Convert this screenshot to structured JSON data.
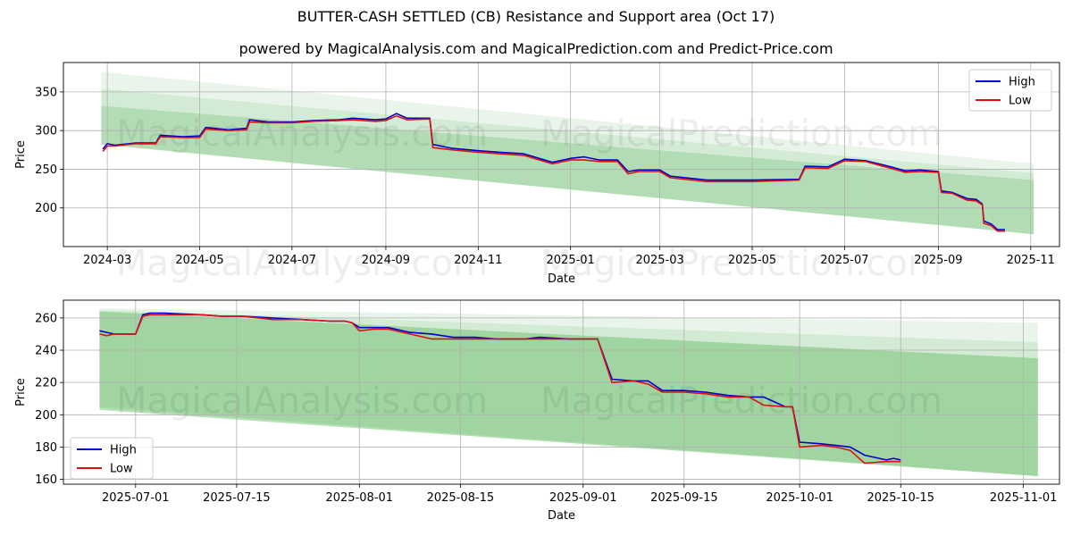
{
  "title": "BUTTER-CASH SETTLED (CB) Resistance and Support area (Oct 17)",
  "subtitle": "powered by MagicalAnalysis.com and MagicalPrediction.com and Predict-Price.com",
  "watermarks": [
    "MagicalAnalysis.com",
    "MagicalPrediction.com"
  ],
  "colors": {
    "high": "#0000cc",
    "low": "#dd1111",
    "band": "#4caf50",
    "grid": "#b0b0b0"
  },
  "chart_data": [
    {
      "type": "line",
      "xlabel": "Date",
      "ylabel": "Price",
      "xlim": [
        "2024-02-01",
        "2025-11-20"
      ],
      "ylim": [
        150,
        388
      ],
      "xticks": [
        "2024-03",
        "2024-05",
        "2024-07",
        "2024-09",
        "2024-11",
        "2025-01",
        "2025-03",
        "2025-05",
        "2025-07",
        "2025-09",
        "2025-11"
      ],
      "xtick_dates": [
        "2024-03-01",
        "2024-05-01",
        "2024-07-01",
        "2024-09-01",
        "2024-11-01",
        "2025-01-01",
        "2025-03-01",
        "2025-05-01",
        "2025-07-01",
        "2025-09-01",
        "2025-11-01"
      ],
      "yticks": [
        200,
        250,
        300,
        350
      ],
      "legend": {
        "position": "top-right",
        "entries": [
          "High",
          "Low"
        ]
      },
      "bands": [
        {
          "x": [
            "2024-02-26",
            "2025-11-03"
          ],
          "upper": [
            376,
            257
          ],
          "lower": [
            282,
            166
          ],
          "opacity": 0.12
        },
        {
          "x": [
            "2024-02-26",
            "2025-11-03"
          ],
          "upper": [
            354,
            245
          ],
          "lower": [
            282,
            166
          ],
          "opacity": 0.14
        },
        {
          "x": [
            "2024-02-26",
            "2025-11-03"
          ],
          "upper": [
            332,
            236
          ],
          "lower": [
            282,
            166
          ],
          "opacity": 0.24
        }
      ],
      "series": [
        {
          "name": "High",
          "x": [
            "2024-02-27",
            "2024-03-01",
            "2024-03-06",
            "2024-03-15",
            "2024-03-20",
            "2024-04-02",
            "2024-04-05",
            "2024-04-20",
            "2024-05-01",
            "2024-05-05",
            "2024-05-20",
            "2024-06-01",
            "2024-06-03",
            "2024-06-15",
            "2024-07-01",
            "2024-07-15",
            "2024-08-01",
            "2024-08-10",
            "2024-08-25",
            "2024-09-01",
            "2024-09-08",
            "2024-09-15",
            "2024-09-30",
            "2024-10-02",
            "2024-10-15",
            "2024-11-01",
            "2024-11-15",
            "2024-12-01",
            "2024-12-20",
            "2025-01-01",
            "2025-01-10",
            "2025-01-20",
            "2025-02-01",
            "2025-02-08",
            "2025-02-15",
            "2025-03-01",
            "2025-03-08",
            "2025-04-01",
            "2025-05-01",
            "2025-06-01",
            "2025-06-05",
            "2025-06-20",
            "2025-07-01",
            "2025-07-15",
            "2025-07-30",
            "2025-08-10",
            "2025-08-20",
            "2025-09-01",
            "2025-09-03",
            "2025-09-10",
            "2025-09-20",
            "2025-09-26",
            "2025-09-30",
            "2025-10-01",
            "2025-10-06",
            "2025-10-10",
            "2025-10-15"
          ],
          "values": [
            276,
            283,
            281,
            283,
            284,
            284,
            294,
            292,
            293,
            304,
            301,
            303,
            314,
            311,
            311,
            313,
            314,
            316,
            314,
            315,
            322,
            316,
            316,
            282,
            277,
            274,
            272,
            270,
            259,
            264,
            266,
            262,
            262,
            247,
            249,
            249,
            241,
            236,
            236,
            237,
            254,
            253,
            263,
            261,
            254,
            248,
            249,
            247,
            222,
            220,
            212,
            211,
            205,
            183,
            179,
            172,
            172
          ]
        },
        {
          "name": "Low",
          "x": [
            "2024-02-27",
            "2024-03-01",
            "2024-03-06",
            "2024-03-15",
            "2024-03-20",
            "2024-04-02",
            "2024-04-05",
            "2024-04-20",
            "2024-05-01",
            "2024-05-05",
            "2024-05-20",
            "2024-06-01",
            "2024-06-03",
            "2024-06-15",
            "2024-07-01",
            "2024-07-15",
            "2024-08-01",
            "2024-08-10",
            "2024-08-25",
            "2024-09-01",
            "2024-09-08",
            "2024-09-15",
            "2024-09-30",
            "2024-10-02",
            "2024-10-15",
            "2024-11-01",
            "2024-11-15",
            "2024-12-01",
            "2024-12-20",
            "2025-01-01",
            "2025-01-10",
            "2025-01-20",
            "2025-02-01",
            "2025-02-08",
            "2025-02-15",
            "2025-03-01",
            "2025-03-08",
            "2025-04-01",
            "2025-05-01",
            "2025-06-01",
            "2025-06-05",
            "2025-06-20",
            "2025-07-01",
            "2025-07-15",
            "2025-07-30",
            "2025-08-10",
            "2025-08-20",
            "2025-09-01",
            "2025-09-03",
            "2025-09-10",
            "2025-09-20",
            "2025-09-26",
            "2025-09-30",
            "2025-10-01",
            "2025-10-06",
            "2025-10-10",
            "2025-10-15"
          ],
          "values": [
            273,
            280,
            280,
            282,
            283,
            283,
            292,
            291,
            291,
            302,
            300,
            301,
            311,
            310,
            310,
            312,
            313,
            314,
            312,
            313,
            319,
            314,
            315,
            278,
            275,
            272,
            270,
            268,
            257,
            262,
            262,
            260,
            260,
            244,
            247,
            247,
            239,
            234,
            234,
            236,
            252,
            251,
            261,
            260,
            252,
            246,
            247,
            246,
            220,
            219,
            210,
            209,
            204,
            180,
            177,
            170,
            170
          ]
        }
      ]
    },
    {
      "type": "line",
      "xlabel": "Date",
      "ylabel": "Price",
      "xlim": [
        "2025-06-21",
        "2025-11-06"
      ],
      "ylim": [
        157,
        271
      ],
      "xticks": [
        "2025-07-01",
        "2025-07-15",
        "2025-08-01",
        "2025-08-15",
        "2025-09-01",
        "2025-09-15",
        "2025-10-01",
        "2025-10-15",
        "2025-11-01"
      ],
      "xtick_dates": [
        "2025-07-01",
        "2025-07-15",
        "2025-08-01",
        "2025-08-15",
        "2025-09-01",
        "2025-09-15",
        "2025-10-01",
        "2025-10-15",
        "2025-11-01"
      ],
      "yticks": [
        160,
        180,
        200,
        220,
        240,
        260
      ],
      "legend": {
        "position": "bottom-left",
        "entries": [
          "High",
          "Low"
        ]
      },
      "bands": [
        {
          "x": [
            "2025-06-26",
            "2025-11-03"
          ],
          "upper": [
            266,
            257
          ],
          "lower": [
            205,
            162
          ],
          "opacity": 0.12
        },
        {
          "x": [
            "2025-06-26",
            "2025-11-03"
          ],
          "upper": [
            265,
            245
          ],
          "lower": [
            204,
            162
          ],
          "opacity": 0.14
        },
        {
          "x": [
            "2025-06-26",
            "2025-11-03"
          ],
          "upper": [
            264,
            235
          ],
          "lower": [
            203,
            162
          ],
          "opacity": 0.38
        }
      ],
      "series": [
        {
          "name": "High",
          "x": [
            "2025-06-26",
            "2025-06-27",
            "2025-06-28",
            "2025-07-01",
            "2025-07-02",
            "2025-07-03",
            "2025-07-05",
            "2025-07-10",
            "2025-07-13",
            "2025-07-16",
            "2025-07-20",
            "2025-07-24",
            "2025-07-28",
            "2025-07-30",
            "2025-07-31",
            "2025-08-01",
            "2025-08-03",
            "2025-08-05",
            "2025-08-08",
            "2025-08-11",
            "2025-08-14",
            "2025-08-17",
            "2025-08-20",
            "2025-08-24",
            "2025-08-26",
            "2025-08-30",
            "2025-09-02",
            "2025-09-03",
            "2025-09-05",
            "2025-09-08",
            "2025-09-10",
            "2025-09-12",
            "2025-09-15",
            "2025-09-18",
            "2025-09-21",
            "2025-09-24",
            "2025-09-26",
            "2025-09-29",
            "2025-09-30",
            "2025-10-01",
            "2025-10-04",
            "2025-10-06",
            "2025-10-08",
            "2025-10-10",
            "2025-10-13",
            "2025-10-14",
            "2025-10-15"
          ],
          "values": [
            252,
            251,
            250,
            250,
            262,
            263,
            263,
            262,
            261,
            261,
            260,
            259,
            258,
            258,
            257,
            254,
            254,
            254,
            251,
            250,
            248,
            248,
            247,
            247,
            248,
            247,
            247,
            247,
            222,
            221,
            221,
            215,
            215,
            214,
            212,
            211,
            211,
            205,
            205,
            183,
            182,
            181,
            180,
            175,
            172,
            173,
            172
          ]
        },
        {
          "name": "Low",
          "x": [
            "2025-06-26",
            "2025-06-27",
            "2025-06-28",
            "2025-07-01",
            "2025-07-02",
            "2025-07-03",
            "2025-07-05",
            "2025-07-10",
            "2025-07-13",
            "2025-07-16",
            "2025-07-20",
            "2025-07-24",
            "2025-07-28",
            "2025-07-30",
            "2025-07-31",
            "2025-08-01",
            "2025-08-03",
            "2025-08-05",
            "2025-08-08",
            "2025-08-11",
            "2025-08-14",
            "2025-08-17",
            "2025-08-20",
            "2025-08-24",
            "2025-08-26",
            "2025-08-30",
            "2025-09-02",
            "2025-09-03",
            "2025-09-05",
            "2025-09-08",
            "2025-09-10",
            "2025-09-12",
            "2025-09-15",
            "2025-09-18",
            "2025-09-21",
            "2025-09-24",
            "2025-09-26",
            "2025-09-29",
            "2025-09-30",
            "2025-10-01",
            "2025-10-04",
            "2025-10-06",
            "2025-10-08",
            "2025-10-10",
            "2025-10-13",
            "2025-10-14",
            "2025-10-15"
          ],
          "values": [
            250,
            249,
            250,
            250,
            261,
            262,
            262,
            262,
            261,
            261,
            259,
            259,
            258,
            258,
            257,
            252,
            253,
            253,
            250,
            247,
            247,
            247,
            247,
            247,
            247,
            247,
            247,
            247,
            220,
            221,
            219,
            214,
            214,
            213,
            211,
            211,
            206,
            205,
            205,
            180,
            181,
            180,
            178,
            170,
            171,
            171,
            171
          ]
        }
      ]
    }
  ]
}
